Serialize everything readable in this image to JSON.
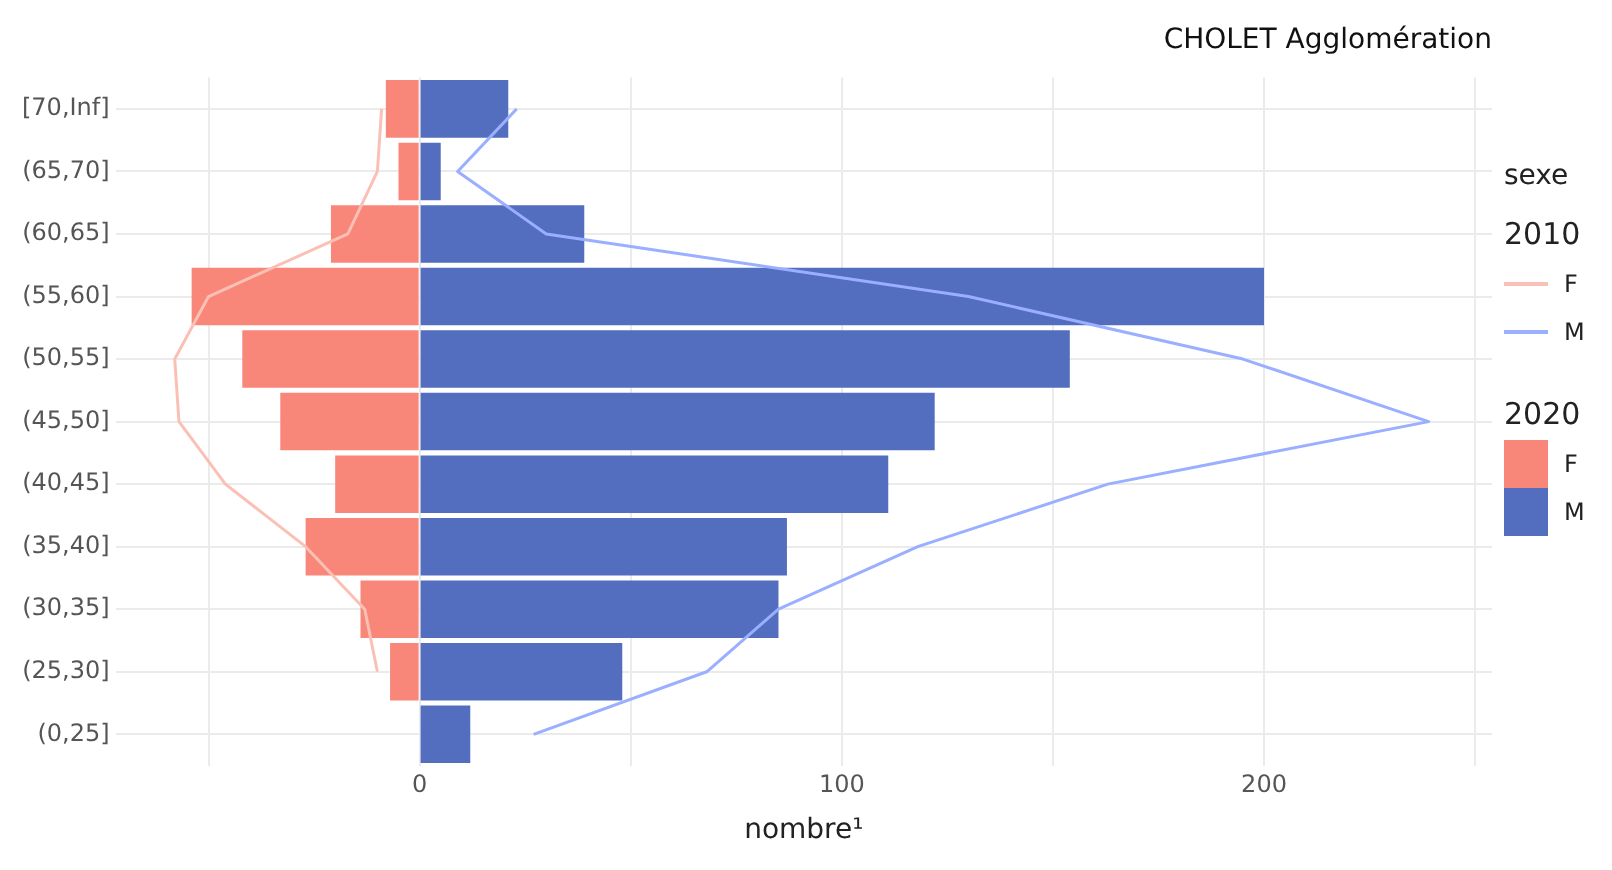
{
  "chart_data": {
    "type": "bar",
    "orientation": "horizontal",
    "stacked": true,
    "title": "CHOLET Agglomération",
    "xlabel": "nombre¹",
    "legend_title": "sexe",
    "legend": "right",
    "grid": true,
    "annotations": [
      "2010",
      "2020"
    ],
    "categories": [
      "[70,Inf]",
      "(65,70]",
      "(60,65]",
      "(55,60]",
      "(50,55]",
      "(45,50]",
      "(40,45]",
      "(35,40]",
      "(30,35]",
      "(25,30]",
      "(0,25]"
    ],
    "xlim": [
      -72,
      254
    ],
    "xticks": [
      {
        "value": -50,
        "label": null
      },
      0,
      {
        "value": 50,
        "label": null
      },
      100,
      {
        "value": 150,
        "label": null
      },
      200,
      {
        "value": 250,
        "label": null
      }
    ],
    "series": [
      {
        "name": "F",
        "color": "#f8877a",
        "values": [
          -8,
          -5,
          -21,
          -54,
          -42,
          -33,
          -20,
          -27,
          -14,
          -7,
          0
        ]
      },
      {
        "name": "M",
        "color": "#536dbf",
        "values": [
          21,
          5,
          39,
          200,
          154,
          122,
          111,
          87,
          85,
          48,
          12
        ]
      },
      {
        "name": "F",
        "type": "line",
        "color": "#fbc0b5",
        "values": [
          -9,
          -10,
          -17,
          -50,
          -58,
          -57,
          -46,
          -27,
          -13,
          -10,
          null
        ]
      },
      {
        "name": "M",
        "type": "line",
        "color": "#9aafff",
        "values": [
          23,
          9,
          30,
          130,
          195,
          239,
          163,
          118,
          85,
          68,
          27
        ]
      }
    ]
  }
}
